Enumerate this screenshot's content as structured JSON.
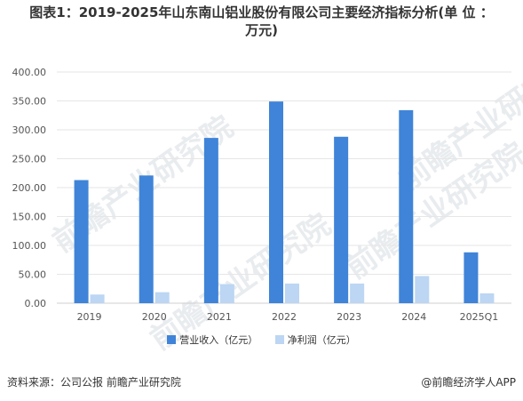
{
  "header": {
    "title_line1": "图表1：2019-2025年山东南山铝业股份有限公司主要经济指标分析(单 位 ：",
    "title_line2": "万元)"
  },
  "watermarks": [
    "前瞻产业研究院",
    "前瞻产业研究院",
    "前瞻产业研究院",
    "前瞻产业研究院"
  ],
  "footer": {
    "source": "资料来源：公司公报 前瞻产业研究院",
    "brand": "@前瞻经济学人APP"
  },
  "colors": {
    "revenue": "#3f84d8",
    "profit": "#bcd6f3",
    "grid": "#e6e6e6",
    "axis_text": "#555555"
  },
  "chart_data": {
    "type": "bar",
    "title": "2019-2025年山东南山铝业股份有限公司主要经济指标分析",
    "categories": [
      "2019",
      "2020",
      "2021",
      "2022",
      "2023",
      "2024",
      "2025Q1"
    ],
    "series": [
      {
        "name": "营业收入（亿元）",
        "values": [
          213,
          221,
          286,
          349,
          288,
          334,
          88
        ]
      },
      {
        "name": "净利润（亿元）",
        "values": [
          15,
          19,
          33,
          34,
          34,
          47,
          17
        ]
      }
    ],
    "ylim": [
      0,
      400
    ],
    "yticks": [
      "0.00",
      "50.00",
      "100.00",
      "150.00",
      "200.00",
      "250.00",
      "300.00",
      "350.00",
      "400.00"
    ],
    "grid": true,
    "legend_position": "bottom"
  }
}
